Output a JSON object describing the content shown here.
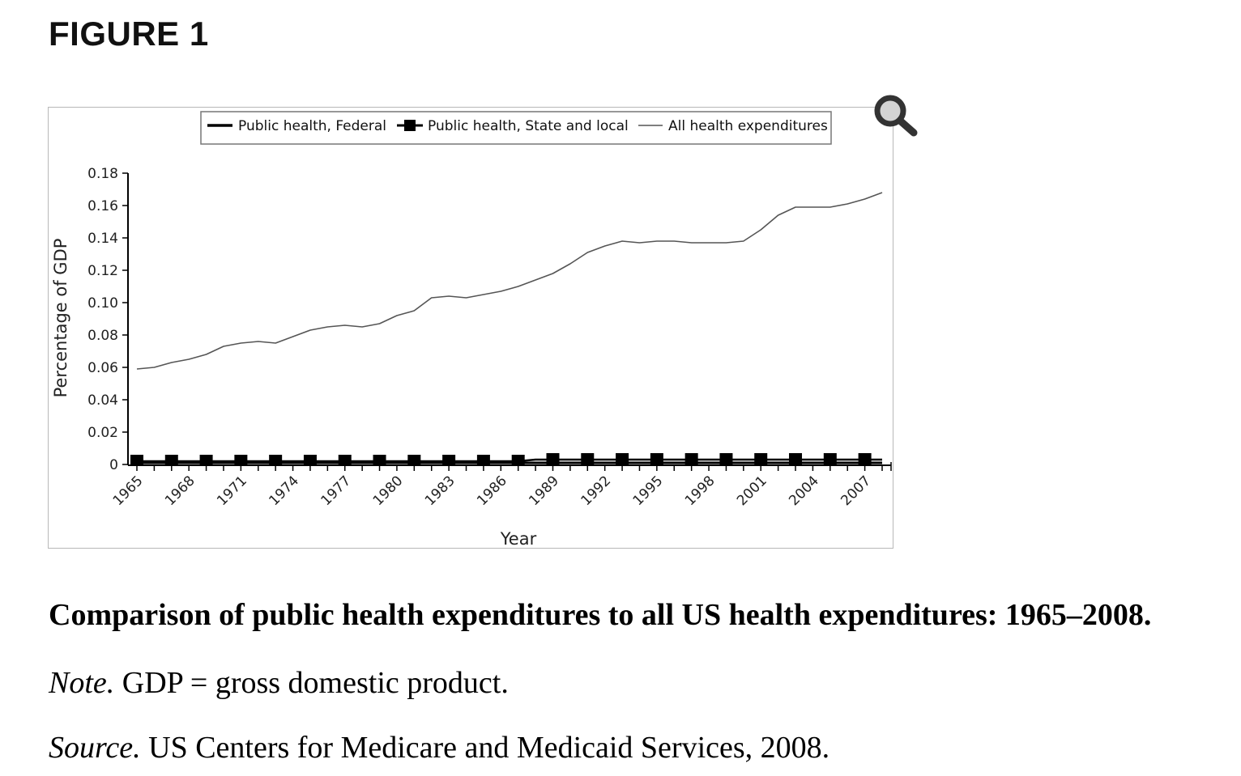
{
  "figure_label": "FIGURE 1",
  "caption": {
    "title": "Comparison of public health expenditures to all US health expenditures: 1965–2008.",
    "note_label": "Note.",
    "note_text": " GDP = gross domestic product.",
    "source_label": "Source.",
    "source_text": " US Centers for Medicare and Medicaid Services, 2008."
  },
  "controls": {
    "zoom_icon": "magnifier-icon"
  },
  "chart_data": {
    "type": "line",
    "title": "",
    "xlabel": "Year",
    "ylabel": "Percentage of GDP",
    "ylim": [
      0,
      0.18
    ],
    "yticks": [
      "0",
      "0.02",
      "0.04",
      "0.06",
      "0.08",
      "0.10",
      "0.12",
      "0.14",
      "0.16",
      "0.18"
    ],
    "ytick_values": [
      0,
      0.02,
      0.04,
      0.06,
      0.08,
      0.1,
      0.12,
      0.14,
      0.16,
      0.18
    ],
    "xlim": [
      1965,
      2008
    ],
    "xtick_labels": [
      "1965",
      "1968",
      "1971",
      "1974",
      "1977",
      "1980",
      "1983",
      "1986",
      "1989",
      "1992",
      "1995",
      "1998",
      "2001",
      "2004",
      "2007"
    ],
    "legend_position": "top-center",
    "grid": false,
    "x": [
      1965,
      1966,
      1967,
      1968,
      1969,
      1970,
      1971,
      1972,
      1973,
      1974,
      1975,
      1976,
      1977,
      1978,
      1979,
      1980,
      1981,
      1982,
      1983,
      1984,
      1985,
      1986,
      1987,
      1988,
      1989,
      1990,
      1991,
      1992,
      1993,
      1994,
      1995,
      1996,
      1997,
      1998,
      1999,
      2000,
      2001,
      2002,
      2003,
      2004,
      2005,
      2006,
      2007,
      2008
    ],
    "series": [
      {
        "name": "Public health, Federal",
        "style": "thick-line",
        "color": "#000000",
        "values": [
          0.001,
          0.001,
          0.001,
          0.001,
          0.001,
          0.001,
          0.001,
          0.001,
          0.001,
          0.001,
          0.001,
          0.001,
          0.001,
          0.001,
          0.001,
          0.001,
          0.001,
          0.001,
          0.001,
          0.001,
          0.001,
          0.001,
          0.001,
          0.001,
          0.001,
          0.001,
          0.001,
          0.001,
          0.001,
          0.001,
          0.001,
          0.001,
          0.001,
          0.001,
          0.001,
          0.001,
          0.001,
          0.001,
          0.001,
          0.001,
          0.001,
          0.001,
          0.001,
          0.001
        ]
      },
      {
        "name": "Public health, State and local",
        "style": "line-square-markers",
        "color": "#000000",
        "values": [
          0.002,
          0.002,
          0.002,
          0.002,
          0.002,
          0.002,
          0.002,
          0.002,
          0.002,
          0.002,
          0.002,
          0.002,
          0.002,
          0.002,
          0.002,
          0.002,
          0.002,
          0.002,
          0.002,
          0.002,
          0.002,
          0.002,
          0.002,
          0.003,
          0.003,
          0.003,
          0.003,
          0.003,
          0.003,
          0.003,
          0.003,
          0.003,
          0.003,
          0.003,
          0.003,
          0.003,
          0.003,
          0.003,
          0.003,
          0.003,
          0.003,
          0.003,
          0.003,
          0.003
        ]
      },
      {
        "name": "All health expenditures",
        "style": "thin-line",
        "color": "#555555",
        "values": [
          0.059,
          0.06,
          0.063,
          0.065,
          0.068,
          0.073,
          0.075,
          0.076,
          0.075,
          0.079,
          0.083,
          0.085,
          0.086,
          0.085,
          0.087,
          0.092,
          0.095,
          0.103,
          0.104,
          0.103,
          0.105,
          0.107,
          0.11,
          0.114,
          0.118,
          0.124,
          0.131,
          0.135,
          0.138,
          0.137,
          0.138,
          0.138,
          0.137,
          0.137,
          0.137,
          0.138,
          0.145,
          0.154,
          0.159,
          0.159,
          0.159,
          0.161,
          0.164,
          0.168
        ]
      }
    ]
  }
}
